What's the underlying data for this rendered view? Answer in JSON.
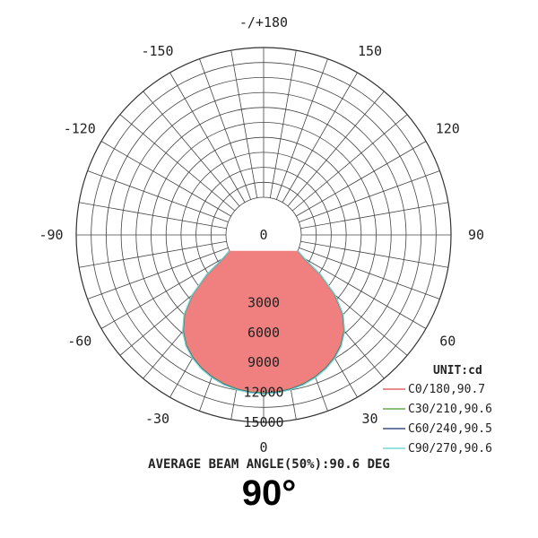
{
  "chart_data": {
    "type": "polar",
    "unit": "UNIT:cd",
    "angle_labels": [
      {
        "angle": 180,
        "text": "-/+180"
      },
      {
        "angle": 150,
        "text": "150"
      },
      {
        "angle": 120,
        "text": "120"
      },
      {
        "angle": 90,
        "text": "90"
      },
      {
        "angle": 60,
        "text": "60"
      },
      {
        "angle": 30,
        "text": "30"
      },
      {
        "angle": 0,
        "text": "0"
      },
      {
        "angle": -30,
        "text": "-30"
      },
      {
        "angle": -60,
        "text": "-60"
      },
      {
        "angle": -90,
        "text": "-90"
      },
      {
        "angle": -120,
        "text": "-120"
      },
      {
        "angle": -150,
        "text": "-150"
      }
    ],
    "ring_values": [
      0,
      3000,
      6000,
      9000,
      12000,
      15000
    ],
    "radial_max": 15000,
    "angle_grid_step": 10,
    "series": [
      {
        "name": "C0/180,90.7",
        "color": "#e06666",
        "angles": [
          0,
          5,
          10,
          15,
          20,
          25,
          30,
          35,
          40,
          45,
          50,
          55,
          60,
          65
        ],
        "values": [
          12050,
          12000,
          11870,
          11650,
          11330,
          10920,
          10390,
          9700,
          8750,
          7400,
          5500,
          3150,
          900,
          0
        ]
      },
      {
        "name": "C30/210,90.6",
        "color": "#6aa84f",
        "angles": [
          0,
          5,
          10,
          15,
          20,
          25,
          30,
          35,
          40,
          45,
          50,
          55,
          60,
          65
        ],
        "values": [
          12050,
          12010,
          11880,
          11660,
          11340,
          10930,
          10400,
          9710,
          8760,
          7410,
          5510,
          3160,
          910,
          0
        ]
      },
      {
        "name": "C60/240,90.5",
        "color": "#3d4f8c",
        "angles": [
          0,
          5,
          10,
          15,
          20,
          25,
          30,
          35,
          40,
          45,
          50,
          55,
          60,
          65
        ],
        "values": [
          12100,
          12050,
          11920,
          11700,
          11380,
          10970,
          10440,
          9750,
          8800,
          7450,
          5550,
          3200,
          950,
          0
        ]
      },
      {
        "name": "C90/270,90.6",
        "color": "#76d7d0",
        "angles": [
          0,
          5,
          10,
          15,
          20,
          25,
          30,
          35,
          40,
          45,
          50,
          55,
          60,
          65
        ],
        "values": [
          12150,
          12100,
          11970,
          11750,
          11430,
          11020,
          10490,
          9800,
          8850,
          7500,
          5600,
          3250,
          1000,
          0
        ]
      }
    ],
    "fill_color": "#f08080"
  },
  "footer": {
    "beam_text": "AVERAGE BEAM ANGLE(50%):90.6 DEG",
    "big_angle": "90°"
  }
}
